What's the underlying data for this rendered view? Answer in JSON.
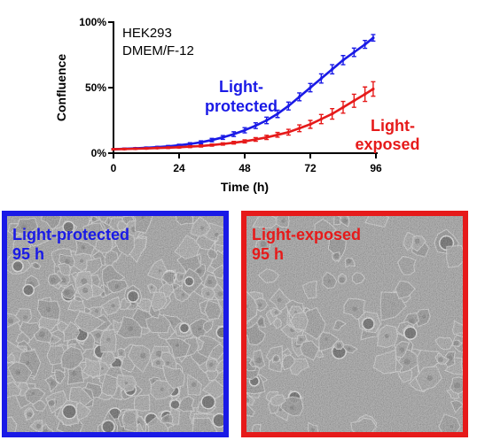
{
  "conditions": [
    "HEK293",
    "DMEM/F-12"
  ],
  "chart_data": {
    "type": "line",
    "xlabel": "Time (h)",
    "ylabel": "Confluence",
    "xlim": [
      0,
      96
    ],
    "ylim": [
      0,
      100
    ],
    "xticks": [
      0,
      24,
      48,
      72,
      96
    ],
    "yticks": [
      0,
      50,
      100
    ],
    "ytick_labels": [
      "0%",
      "50%",
      "100%"
    ],
    "grid": false,
    "x": [
      0,
      4,
      8,
      12,
      16,
      20,
      24,
      28,
      32,
      36,
      40,
      44,
      48,
      52,
      56,
      60,
      64,
      68,
      72,
      76,
      80,
      84,
      88,
      92,
      95
    ],
    "series": [
      {
        "name": "Light-protected",
        "color": "#1a1ae6",
        "values": [
          3,
          3.3,
          3.7,
          4.1,
          4.6,
          5.2,
          6,
          7,
          8.3,
          10,
          12,
          14.5,
          17.5,
          21,
          25,
          30,
          36,
          43,
          50,
          57,
          64,
          71,
          77,
          83,
          88
        ],
        "errors": [
          0.5,
          0.5,
          0.5,
          0.6,
          0.6,
          0.7,
          0.8,
          1,
          1.1,
          1.3,
          1.5,
          1.8,
          2,
          2.2,
          2.5,
          2.8,
          3,
          3,
          3.2,
          3.5,
          3.5,
          3.5,
          3.2,
          3,
          2.5
        ]
      },
      {
        "name": "Light-exposed",
        "color": "#e61a1a",
        "values": [
          3,
          3.2,
          3.4,
          3.6,
          3.9,
          4.2,
          4.5,
          5,
          5.5,
          6.2,
          7,
          8,
          9,
          10.5,
          12,
          14,
          16,
          19,
          22,
          26,
          30,
          35,
          40,
          45,
          49
        ],
        "errors": [
          0.5,
          0.5,
          0.5,
          0.5,
          0.5,
          0.6,
          0.6,
          0.7,
          0.8,
          0.8,
          0.9,
          1,
          1.2,
          1.4,
          1.6,
          1.8,
          2.2,
          2.6,
          3,
          3.5,
          4,
          4.5,
          5,
          5.5,
          5.5
        ]
      }
    ],
    "annotations": [
      {
        "text": "Light-\nprotected",
        "series": "Light-protected"
      },
      {
        "text": "Light-\nexposed",
        "series": "Light-exposed"
      }
    ]
  },
  "panels": [
    {
      "label": "Light-protected\n95 h",
      "color": "#1a1ae6"
    },
    {
      "label": "Light-exposed\n95 h",
      "color": "#e61a1a"
    }
  ]
}
